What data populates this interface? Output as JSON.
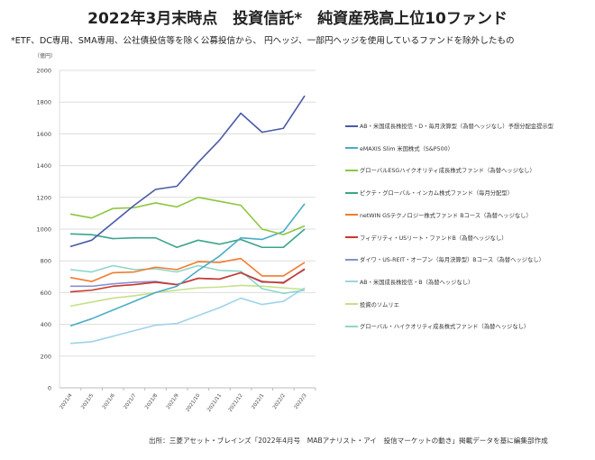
{
  "title": "2022年3月末時点　投資信託*　純資産残高上位10ファンド",
  "note": "*ETF、DC専用、SMA専用、公社債投信等を除く公募投信から、 円ヘッジ、一部円ヘッジを使用しているファンドを除外したもの",
  "source": "出所：三菱アセット・ブレインズ「2022年4月号　MABアナリスト・アイ　投信マーケットの動き」掲載データを基に編集部作成",
  "chart_data": {
    "type": "line",
    "title": "2022年3月末時点　投資信託*　純資産残高上位10ファンド",
    "ylabel": "（億円）",
    "xlabel": "",
    "ylim": [
      0,
      2000
    ],
    "yticks": [
      0,
      200,
      400,
      600,
      800,
      1000,
      1200,
      1400,
      1600,
      1800,
      2000
    ],
    "grid": true,
    "legend_position": "right",
    "categories": [
      "2021/4",
      "2021/5",
      "2021/6",
      "2021/7",
      "2021/8",
      "2021/9",
      "2021/10",
      "2021/11",
      "2021/12",
      "2022/1",
      "2022/2",
      "2022/3"
    ],
    "series": [
      {
        "name": "AB・米国成長株投信・D・毎月決算型（為替ヘッジなし）予想分配金提示型",
        "color": "#4a5aa8",
        "values": [
          890,
          930,
          1040,
          1150,
          1250,
          1270,
          1420,
          1560,
          1730,
          1610,
          1635,
          1840
        ]
      },
      {
        "name": "eMAXIS Slim 米国株式（S&P500）",
        "color": "#4bacc6",
        "values": [
          390,
          435,
          490,
          545,
          600,
          640,
          740,
          830,
          945,
          935,
          985,
          1160
        ]
      },
      {
        "name": "グローバルESGハイクオリティ成長株式ファンド（為替ヘッジなし）",
        "color": "#8dc63f",
        "values": [
          1095,
          1070,
          1130,
          1135,
          1165,
          1140,
          1200,
          1175,
          1150,
          1000,
          965,
          1020
        ]
      },
      {
        "name": "ピクテ・グローバル・インカム株式ファンド（毎月分配型）",
        "color": "#3aa68a",
        "values": [
          970,
          965,
          940,
          945,
          945,
          885,
          930,
          905,
          935,
          885,
          885,
          1000
        ]
      },
      {
        "name": "netWIN GSテクノロジー株式ファンド Bコース（為替ヘッジなし）",
        "color": "#ed7d31",
        "values": [
          695,
          670,
          725,
          730,
          760,
          745,
          795,
          790,
          815,
          705,
          705,
          790
        ]
      },
      {
        "name": "フィデリティ・USリート・ファンドB（為替ヘッジなし）",
        "color": "#c8392b",
        "values": [
          605,
          615,
          640,
          650,
          665,
          650,
          690,
          685,
          725,
          670,
          660,
          750
        ]
      },
      {
        "name": "ダイワ・US-REIT・オープン（毎月決算型）Bコース（為替ヘッジなし）",
        "color": "#8a8fd0",
        "values": [
          640,
          640,
          655,
          665,
          670,
          650,
          690,
          685,
          725,
          665,
          665,
          745
        ]
      },
      {
        "name": "AB・米国成長株投信・B（為替ヘッジなし）",
        "color": "#9fd3ea",
        "values": [
          280,
          290,
          325,
          360,
          395,
          405,
          455,
          505,
          565,
          525,
          545,
          630
        ]
      },
      {
        "name": "投資のソムリエ",
        "color": "#c5e08a",
        "values": [
          515,
          540,
          565,
          580,
          600,
          615,
          630,
          635,
          645,
          640,
          630,
          620
        ]
      },
      {
        "name": "グローバル・ハイクオリティ成長株式ファンド（為替ヘッジなし）",
        "color": "#8fd6c8",
        "values": [
          745,
          730,
          770,
          745,
          750,
          730,
          770,
          740,
          735,
          625,
          595,
          615
        ]
      }
    ]
  }
}
